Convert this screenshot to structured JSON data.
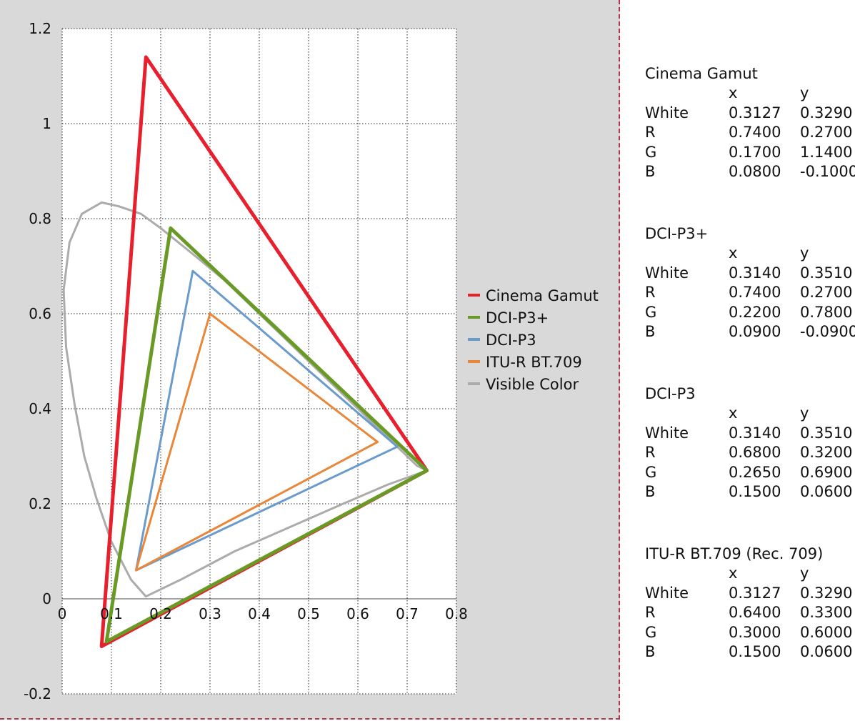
{
  "chart_data": {
    "type": "line",
    "xlim": [
      0,
      0.8
    ],
    "ylim": [
      -0.2,
      1.2
    ],
    "xticks": [
      "0",
      "0.1",
      "0.2",
      "0.3",
      "0.4",
      "0.5",
      "0.6",
      "0.7",
      "0.8"
    ],
    "yticks": [
      "1.2",
      "1",
      "0.8",
      "0.6",
      "0.4",
      "0.2",
      "0",
      "-0.2"
    ],
    "grid": true,
    "legend_position": "right",
    "series": [
      {
        "name": "Cinema Gamut",
        "color": "#e8202e",
        "points": [
          [
            0.74,
            0.27
          ],
          [
            0.17,
            1.14
          ],
          [
            0.08,
            -0.1
          ],
          [
            0.74,
            0.27
          ]
        ]
      },
      {
        "name": "DCI-P3+",
        "color": "#6a9a26",
        "points": [
          [
            0.74,
            0.27
          ],
          [
            0.22,
            0.78
          ],
          [
            0.09,
            -0.09
          ],
          [
            0.74,
            0.27
          ]
        ]
      },
      {
        "name": "DCI-P3",
        "color": "#6a9bcc",
        "points": [
          [
            0.68,
            0.32
          ],
          [
            0.265,
            0.69
          ],
          [
            0.15,
            0.06
          ],
          [
            0.68,
            0.32
          ]
        ]
      },
      {
        "name": "ITU-R BT.709",
        "color": "#e8873a",
        "points": [
          [
            0.64,
            0.33
          ],
          [
            0.3,
            0.6
          ],
          [
            0.15,
            0.06
          ],
          [
            0.64,
            0.33
          ]
        ]
      },
      {
        "name": "Visible Color",
        "color": "#ababab",
        "points": [
          [
            0.74,
            0.27
          ],
          [
            0.72,
            0.28
          ],
          [
            0.68,
            0.32
          ],
          [
            0.62,
            0.38
          ],
          [
            0.55,
            0.45
          ],
          [
            0.47,
            0.53
          ],
          [
            0.4,
            0.6
          ],
          [
            0.33,
            0.67
          ],
          [
            0.26,
            0.73
          ],
          [
            0.2,
            0.78
          ],
          [
            0.16,
            0.81
          ],
          [
            0.115,
            0.826
          ],
          [
            0.08,
            0.834
          ],
          [
            0.04,
            0.81
          ],
          [
            0.015,
            0.75
          ],
          [
            0.003,
            0.65
          ],
          [
            0.008,
            0.53
          ],
          [
            0.025,
            0.41
          ],
          [
            0.045,
            0.3
          ],
          [
            0.07,
            0.21
          ],
          [
            0.1,
            0.12
          ],
          [
            0.14,
            0.04
          ],
          [
            0.17,
            0.005
          ],
          [
            0.24,
            0.04
          ],
          [
            0.35,
            0.1
          ],
          [
            0.46,
            0.15
          ],
          [
            0.57,
            0.2
          ],
          [
            0.66,
            0.24
          ],
          [
            0.74,
            0.27
          ]
        ]
      }
    ]
  },
  "gamut_tables": [
    {
      "title": "Cinema Gamut",
      "header": {
        "x": "x",
        "y": "y"
      },
      "rows": [
        {
          "label": "White",
          "x": "0.3127",
          "y": "0.3290"
        },
        {
          "label": "R",
          "x": "0.7400",
          "y": "0.2700"
        },
        {
          "label": "G",
          "x": "0.1700",
          "y": "1.1400"
        },
        {
          "label": "B",
          "x": "0.0800",
          "y": "-0.1000"
        }
      ]
    },
    {
      "title": "DCI-P3+",
      "header": {
        "x": "x",
        "y": "y"
      },
      "rows": [
        {
          "label": "White",
          "x": "0.3140",
          "y": "0.3510"
        },
        {
          "label": "R",
          "x": "0.7400",
          "y": "0.2700"
        },
        {
          "label": "G",
          "x": "0.2200",
          "y": "0.7800"
        },
        {
          "label": "B",
          "x": "0.0900",
          "y": "-0.0900"
        }
      ]
    },
    {
      "title": "DCI-P3",
      "header": {
        "x": "x",
        "y": "y"
      },
      "rows": [
        {
          "label": "White",
          "x": "0.3140",
          "y": "0.3510"
        },
        {
          "label": "R",
          "x": "0.6800",
          "y": "0.3200"
        },
        {
          "label": "G",
          "x": "0.2650",
          "y": "0.6900"
        },
        {
          "label": "B",
          "x": "0.1500",
          "y": "0.0600"
        }
      ]
    },
    {
      "title": "ITU-R BT.709 (Rec. 709)",
      "header": {
        "x": "x",
        "y": "y"
      },
      "rows": [
        {
          "label": "White",
          "x": "0.3127",
          "y": "0.3290"
        },
        {
          "label": "R",
          "x": "0.6400",
          "y": "0.3300"
        },
        {
          "label": "G",
          "x": "0.3000",
          "y": "0.6000"
        },
        {
          "label": "B",
          "x": "0.1500",
          "y": "0.0600"
        }
      ]
    }
  ]
}
